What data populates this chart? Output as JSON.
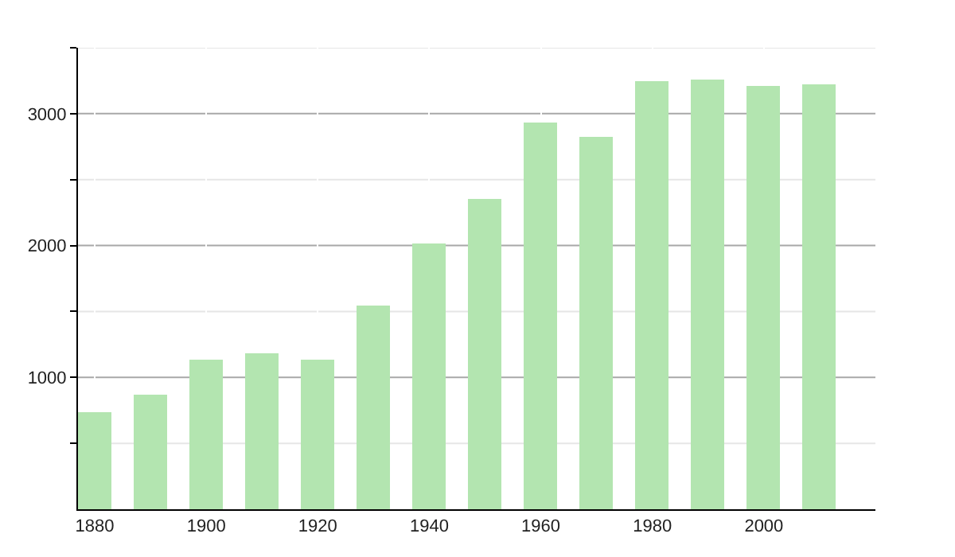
{
  "chart_data": {
    "type": "bar",
    "x": [
      1880,
      1890,
      1900,
      1910,
      1920,
      1930,
      1940,
      1950,
      1960,
      1970,
      1980,
      1990,
      2000,
      2010
    ],
    "values": [
      740,
      870,
      1130,
      1180,
      1130,
      1540,
      2010,
      2350,
      2930,
      2830,
      3250,
      3260,
      3210,
      3220
    ],
    "color": "#b3e5b0",
    "xlim": [
      1877,
      2020
    ],
    "xticks": [
      1880,
      1900,
      1920,
      1940,
      1960,
      1980,
      2000
    ],
    "ylim": [
      0,
      3500
    ],
    "yticks": [
      {
        "value": 500,
        "label": null
      },
      1000,
      {
        "value": 1500,
        "label": null
      },
      2000,
      {
        "value": 2500,
        "label": null
      },
      3000,
      {
        "value": 3500,
        "label": null
      }
    ],
    "grid": true
  }
}
